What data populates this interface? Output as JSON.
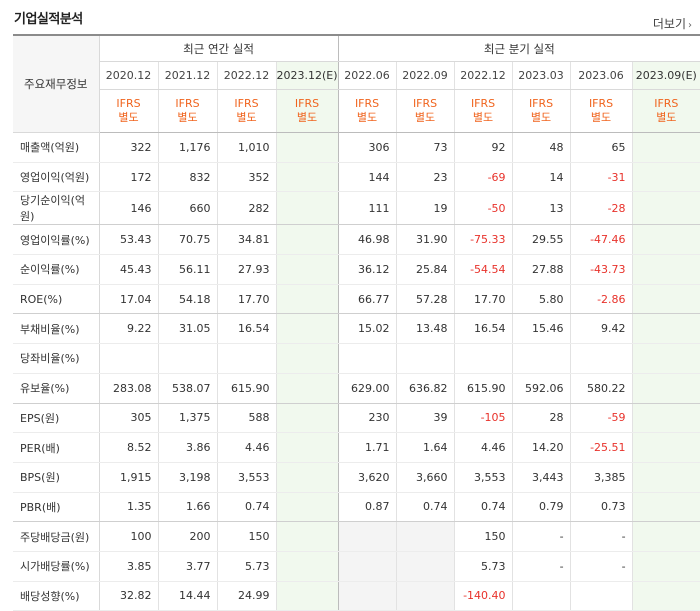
{
  "section_title": "기업실적분석",
  "more_label": "더보기",
  "header": {
    "row_label": "주요재무정보",
    "annual_label": "최근 연간 실적",
    "quarter_label": "최근 분기 실적",
    "annual_periods": [
      "2020.12",
      "2021.12",
      "2022.12",
      "2023.12(E)"
    ],
    "quarter_periods": [
      "2022.06",
      "2022.09",
      "2022.12",
      "2023.03",
      "2023.06",
      "2023.09(E)"
    ],
    "ifrs_line1": "IFRS",
    "ifrs_line2": "별도"
  },
  "rows": [
    {
      "label": "매출액(억원)",
      "annual": [
        "322",
        "1,176",
        "1,010",
        ""
      ],
      "quarter": [
        "306",
        "73",
        "92",
        "48",
        "65",
        ""
      ]
    },
    {
      "label": "영업이익(억원)",
      "annual": [
        "172",
        "832",
        "352",
        ""
      ],
      "quarter": [
        "144",
        "23",
        "-69",
        "14",
        "-31",
        ""
      ]
    },
    {
      "label": "당기순이익(억원)",
      "annual": [
        "146",
        "660",
        "282",
        ""
      ],
      "quarter": [
        "111",
        "19",
        "-50",
        "13",
        "-28",
        ""
      ]
    },
    {
      "label": "영업이익률(%)",
      "annual": [
        "53.43",
        "70.75",
        "34.81",
        ""
      ],
      "quarter": [
        "46.98",
        "31.90",
        "-75.33",
        "29.55",
        "-47.46",
        ""
      ]
    },
    {
      "label": "순이익률(%)",
      "annual": [
        "45.43",
        "56.11",
        "27.93",
        ""
      ],
      "quarter": [
        "36.12",
        "25.84",
        "-54.54",
        "27.88",
        "-43.73",
        ""
      ]
    },
    {
      "label": "ROE(%)",
      "annual": [
        "17.04",
        "54.18",
        "17.70",
        ""
      ],
      "quarter": [
        "66.77",
        "57.28",
        "17.70",
        "5.80",
        "-2.86",
        ""
      ]
    },
    {
      "label": "부채비율(%)",
      "annual": [
        "9.22",
        "31.05",
        "16.54",
        ""
      ],
      "quarter": [
        "15.02",
        "13.48",
        "16.54",
        "15.46",
        "9.42",
        ""
      ]
    },
    {
      "label": "당좌비율(%)",
      "annual": [
        "",
        "",
        "",
        ""
      ],
      "quarter": [
        "",
        "",
        "",
        "",
        "",
        ""
      ]
    },
    {
      "label": "유보율(%)",
      "annual": [
        "283.08",
        "538.07",
        "615.90",
        ""
      ],
      "quarter": [
        "629.00",
        "636.82",
        "615.90",
        "592.06",
        "580.22",
        ""
      ]
    },
    {
      "label": "EPS(원)",
      "annual": [
        "305",
        "1,375",
        "588",
        ""
      ],
      "quarter": [
        "230",
        "39",
        "-105",
        "28",
        "-59",
        ""
      ]
    },
    {
      "label": "PER(배)",
      "annual": [
        "8.52",
        "3.86",
        "4.46",
        ""
      ],
      "quarter": [
        "1.71",
        "1.64",
        "4.46",
        "14.20",
        "-25.51",
        ""
      ]
    },
    {
      "label": "BPS(원)",
      "annual": [
        "1,915",
        "3,198",
        "3,553",
        ""
      ],
      "quarter": [
        "3,620",
        "3,660",
        "3,553",
        "3,443",
        "3,385",
        ""
      ]
    },
    {
      "label": "PBR(배)",
      "annual": [
        "1.35",
        "1.66",
        "0.74",
        ""
      ],
      "quarter": [
        "0.87",
        "0.74",
        "0.74",
        "0.79",
        "0.73",
        ""
      ]
    },
    {
      "label": "주당배당금(원)",
      "annual": [
        "100",
        "200",
        "150",
        ""
      ],
      "quarter": [
        "",
        "",
        "150",
        "-",
        "-",
        ""
      ]
    },
    {
      "label": "시가배당률(%)",
      "annual": [
        "3.85",
        "3.77",
        "5.73",
        ""
      ],
      "quarter": [
        "",
        "",
        "5.73",
        "-",
        "-",
        ""
      ]
    },
    {
      "label": "배당성향(%)",
      "annual": [
        "32.82",
        "14.44",
        "24.99",
        ""
      ],
      "quarter": [
        "",
        "",
        "-140.40",
        "",
        "",
        ""
      ]
    }
  ],
  "colors": {
    "negative": "#e8322b",
    "ifrs": "#f0641e",
    "estimate_bg": "#f1f9ee",
    "blank_bg": "#f4f4f4"
  }
}
